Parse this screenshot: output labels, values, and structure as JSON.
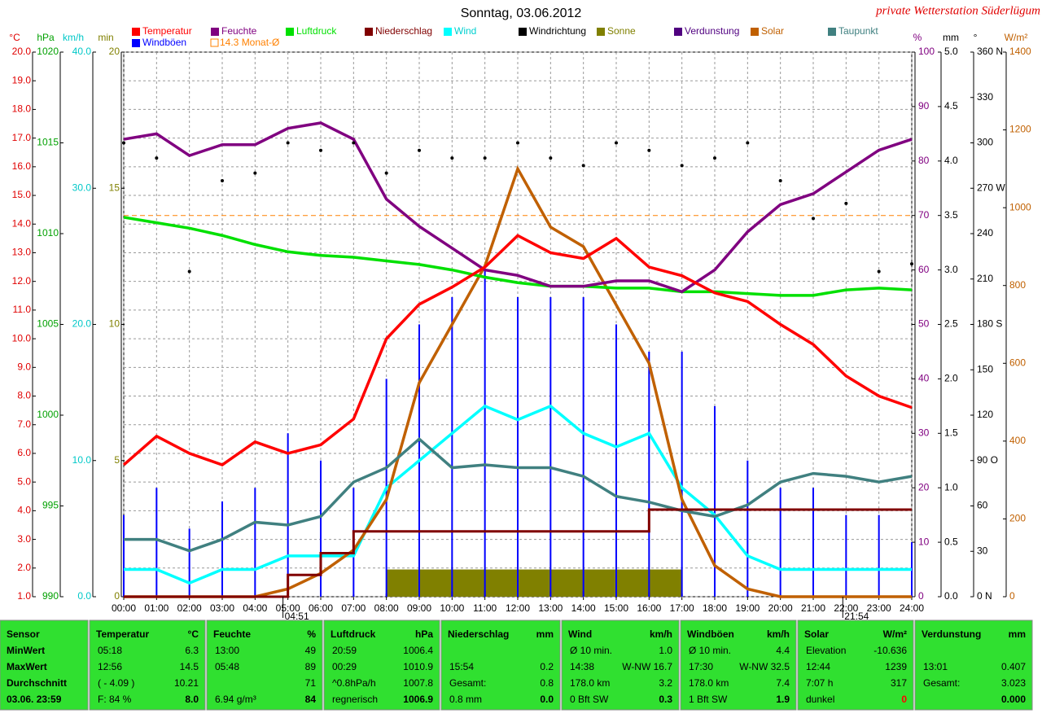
{
  "chart_data": {
    "type": "multi-axis-weather",
    "title": "Sonntag, 03.06.2012",
    "subtitle": "private Wetterstation Süderlügum",
    "x": [
      0,
      1,
      2,
      3,
      4,
      5,
      6,
      7,
      8,
      9,
      10,
      11,
      12,
      13,
      14,
      15,
      16,
      17,
      18,
      19,
      20,
      21,
      22,
      23,
      24
    ],
    "xlim": [
      0,
      24
    ],
    "xticks": [
      {
        "value": 0,
        "label": "00:00"
      },
      {
        "value": 1,
        "label": "01:00"
      },
      {
        "value": 2,
        "label": "02:00"
      },
      {
        "value": 3,
        "label": "03:00"
      },
      {
        "value": 4,
        "label": "04:00"
      },
      {
        "value": 5,
        "label": "05:00"
      },
      {
        "value": 6,
        "label": "06:00"
      },
      {
        "value": 7,
        "label": "07:00"
      },
      {
        "value": 8,
        "label": "08:00"
      },
      {
        "value": 9,
        "label": "09:00"
      },
      {
        "value": 10,
        "label": "10:00"
      },
      {
        "value": 11,
        "label": "11:00"
      },
      {
        "value": 12,
        "label": "12:00"
      },
      {
        "value": 13,
        "label": "13:00"
      },
      {
        "value": 14,
        "label": "14:00"
      },
      {
        "value": 15,
        "label": "15:00"
      },
      {
        "value": 16,
        "label": "16:00"
      },
      {
        "value": 17,
        "label": "17:00"
      },
      {
        "value": 18,
        "label": "18:00"
      },
      {
        "value": 19,
        "label": "19:00"
      },
      {
        "value": 20,
        "label": "20:00"
      },
      {
        "value": 21,
        "label": "21:00"
      },
      {
        "value": 22,
        "label": "22:00"
      },
      {
        "value": 23,
        "label": "23:00"
      },
      {
        "value": 24,
        "label": "24:00"
      }
    ],
    "grid": true,
    "annotations": [
      "04:51",
      "21:54"
    ],
    "axes": [
      {
        "label": "°C",
        "color": "#e00000",
        "side": "left",
        "lim": [
          1,
          20
        ],
        "ticks": [
          {
            "value": 1,
            "label": "1.0"
          },
          {
            "value": 2,
            "label": "2.0"
          },
          {
            "value": 3,
            "label": "3.0"
          },
          {
            "value": 4,
            "label": "4.0"
          },
          {
            "value": 5,
            "label": "5.0"
          },
          {
            "value": 6,
            "label": "6.0"
          },
          {
            "value": 7,
            "label": "7.0"
          },
          {
            "value": 8,
            "label": "8.0"
          },
          {
            "value": 9,
            "label": "9.0"
          },
          {
            "value": 10,
            "label": "10.0"
          },
          {
            "value": 11,
            "label": "11.0"
          },
          {
            "value": 12,
            "label": "12.0"
          },
          {
            "value": 13,
            "label": "13.0"
          },
          {
            "value": 14,
            "label": "14.0"
          },
          {
            "value": 15,
            "label": "15.0"
          },
          {
            "value": 16,
            "label": "16.0"
          },
          {
            "value": 17,
            "label": "17.0"
          },
          {
            "value": 18,
            "label": "18.0"
          },
          {
            "value": 19,
            "label": "19.0"
          },
          {
            "value": 20,
            "label": "20.0"
          }
        ]
      },
      {
        "label": "hPa",
        "color": "#00a000",
        "side": "left",
        "lim": [
          990,
          1020
        ],
        "ticks": [
          990,
          995,
          1000,
          1005,
          1010,
          1015,
          1020
        ]
      },
      {
        "label": "km/h",
        "color": "#00c8c8",
        "side": "left",
        "lim": [
          0,
          40
        ],
        "ticks": [
          {
            "value": 0,
            "label": "0.0"
          },
          {
            "value": 10,
            "label": "10.0"
          },
          {
            "value": 20,
            "label": "20.0"
          },
          {
            "value": 30,
            "label": "30.0"
          },
          {
            "value": 40,
            "label": "40.0"
          }
        ]
      },
      {
        "label": "min",
        "color": "#808000",
        "side": "left",
        "lim": [
          0,
          20
        ],
        "ticks": [
          0,
          5,
          10,
          15,
          20
        ]
      },
      {
        "label": "%",
        "color": "#800080",
        "side": "right",
        "lim": [
          0,
          100
        ],
        "ticks": [
          0,
          10,
          20,
          30,
          40,
          50,
          60,
          70,
          80,
          90,
          100
        ]
      },
      {
        "label": "mm",
        "color": "#000000",
        "side": "right",
        "lim": [
          0,
          5
        ],
        "ticks": [
          {
            "value": 0,
            "label": "0.0"
          },
          {
            "value": 0.5,
            "label": "0.5"
          },
          {
            "value": 1,
            "label": "1.0"
          },
          {
            "value": 1.5,
            "label": "1.5"
          },
          {
            "value": 2,
            "label": "2.0"
          },
          {
            "value": 2.5,
            "label": "2.5"
          },
          {
            "value": 3,
            "label": "3.0"
          },
          {
            "value": 3.5,
            "label": "3.5"
          },
          {
            "value": 4,
            "label": "4.0"
          },
          {
            "value": 4.5,
            "label": "4.5"
          },
          {
            "value": 5,
            "label": "5.0"
          }
        ]
      },
      {
        "label": "°",
        "color": "#000000",
        "side": "right",
        "lim": [
          0,
          360
        ],
        "ticks": [
          {
            "value": 0,
            "label": "0   N"
          },
          30,
          60,
          {
            "value": 90,
            "label": "90  O"
          },
          120,
          150,
          {
            "value": 180,
            "label": "180 S"
          },
          210,
          240,
          {
            "value": 270,
            "label": "270 W"
          },
          300,
          330,
          {
            "value": 360,
            "label": "360 N"
          }
        ]
      },
      {
        "label": "W/m²",
        "color": "#c06000",
        "side": "right",
        "lim": [
          0,
          1400
        ],
        "ticks": [
          0,
          200,
          400,
          600,
          800,
          1000,
          1200,
          1400
        ]
      }
    ],
    "series": [
      {
        "name": "Temperatur",
        "color": "#ff0000",
        "axis": 0,
        "style": "line",
        "values": [
          5.6,
          6.6,
          6.0,
          5.6,
          6.4,
          6.0,
          6.3,
          7.2,
          10.0,
          11.2,
          11.8,
          12.5,
          13.6,
          13.0,
          12.8,
          13.5,
          12.5,
          12.2,
          11.6,
          11.3,
          10.5,
          9.8,
          8.7,
          8.0,
          7.6
        ]
      },
      {
        "name": "Feuchte",
        "color": "#800080",
        "axis": 4,
        "style": "line",
        "values": [
          84,
          85,
          81,
          83,
          83,
          86,
          87,
          84,
          73,
          68,
          64,
          60,
          59,
          57,
          57,
          58,
          58,
          56,
          60,
          67,
          72,
          74,
          78,
          82,
          84
        ]
      },
      {
        "name": "Luftdruck",
        "color": "#00e000",
        "axis": 1,
        "style": "line",
        "values": [
          1010.9,
          1010.6,
          1010.3,
          1009.9,
          1009.4,
          1009.0,
          1008.8,
          1008.7,
          1008.5,
          1008.3,
          1008.0,
          1007.6,
          1007.3,
          1007.1,
          1007.1,
          1007.0,
          1007.0,
          1006.8,
          1006.8,
          1006.7,
          1006.6,
          1006.6,
          1006.9,
          1007.0,
          1006.9
        ]
      },
      {
        "name": "Niederschlag",
        "color": "#800000",
        "axis": 5,
        "style": "step",
        "values": [
          0,
          0,
          0,
          0,
          0,
          0.2,
          0.4,
          0.6,
          0.6,
          0.6,
          0.6,
          0.6,
          0.6,
          0.6,
          0.6,
          0.6,
          0.8,
          0.8,
          0.8,
          0.8,
          0.8,
          0.8,
          0.8,
          0.8,
          0.8
        ]
      },
      {
        "name": "Wind",
        "color": "#00ffff",
        "axis": 2,
        "style": "line",
        "values": [
          2,
          2,
          1,
          2,
          2,
          3,
          3,
          3,
          8,
          10,
          12,
          14,
          13,
          14,
          12,
          11,
          12,
          8,
          6,
          3,
          2,
          2,
          2,
          2,
          2
        ]
      },
      {
        "name": "Windrichtung",
        "color": "#000000",
        "axis": 6,
        "style": "dots",
        "values": [
          300,
          290,
          215,
          275,
          280,
          300,
          295,
          300,
          280,
          295,
          290,
          290,
          300,
          290,
          285,
          300,
          295,
          285,
          290,
          300,
          275,
          250,
          260,
          215,
          220
        ]
      },
      {
        "name": "Sonne",
        "color": "#808000",
        "axis": 3,
        "style": "bars",
        "values": [
          0,
          0,
          0,
          0,
          0,
          0,
          0,
          0,
          1,
          1,
          1,
          1,
          1,
          1,
          1,
          1,
          1,
          0,
          0,
          0,
          0,
          0,
          0,
          0,
          0
        ]
      },
      {
        "name": "Verdunstung",
        "color": "#500080",
        "axis": 5,
        "style": "spikes",
        "values": [
          0,
          0,
          0,
          0,
          0,
          0,
          0,
          0.02,
          0.03,
          0.05,
          0.05,
          0.06,
          0.06,
          0.05,
          0.05,
          0.04,
          0.04,
          0.03,
          0.02,
          0.01,
          0,
          0,
          0,
          0,
          0
        ]
      },
      {
        "name": "Solar",
        "color": "#c06000",
        "axis": 7,
        "style": "line",
        "values": [
          0,
          0,
          0,
          0,
          0,
          20,
          60,
          120,
          250,
          550,
          700,
          850,
          1100,
          950,
          900,
          750,
          600,
          250,
          80,
          20,
          0,
          0,
          0,
          0,
          0
        ]
      },
      {
        "name": "Taupunkt",
        "color": "#408080",
        "axis": 0,
        "style": "line",
        "values": [
          3.0,
          3.0,
          2.6,
          3.0,
          3.6,
          3.5,
          3.8,
          5.0,
          5.5,
          6.5,
          5.5,
          5.6,
          5.5,
          5.5,
          5.2,
          4.5,
          4.3,
          4.0,
          3.8,
          4.2,
          5.0,
          5.3,
          5.2,
          5.0,
          5.2
        ]
      },
      {
        "name": "Windböen",
        "color": "#0000ff",
        "axis": 2,
        "style": "spikes",
        "values": [
          6,
          8,
          5,
          7,
          8,
          12,
          10,
          8,
          16,
          20,
          22,
          24,
          22,
          22,
          22,
          20,
          18,
          18,
          14,
          10,
          8,
          8,
          6,
          6,
          4
        ]
      }
    ],
    "reference": {
      "label": "14.3 Monat-Ø",
      "value": 14.3,
      "axis": 0,
      "color": "#ff8000"
    }
  },
  "table": {
    "columns": [
      {
        "header": "Sensor",
        "rows": [
          "MinWert",
          "MaxWert",
          "Durchschnitt",
          "03.06. 23:59"
        ]
      },
      {
        "header": "Temperatur",
        "unit": "°C",
        "rows": [
          {
            "left": "05:18",
            "right": "6.3"
          },
          {
            "left": "12:56",
            "right": "14.5"
          },
          {
            "left": "( - 4.09 )",
            "right": "10.21"
          },
          {
            "left": "F: 84 %",
            "right": "8.0"
          }
        ]
      },
      {
        "header": "Feuchte",
        "unit": "%",
        "rows": [
          {
            "left": "13:00",
            "right": "49"
          },
          {
            "left": "05:48",
            "right": "89"
          },
          {
            "right": "71"
          },
          {
            "left": "6.94 g/m³",
            "right": "84"
          }
        ]
      },
      {
        "header": "Luftdruck",
        "unit": "hPa",
        "rows": [
          {
            "left": "20:59",
            "right": "1006.4"
          },
          {
            "left": "00:29",
            "right": "1010.9"
          },
          {
            "left": "^0.8hPa/h",
            "right": "1007.8"
          },
          {
            "left": "regnerisch",
            "right": "1006.9"
          }
        ]
      },
      {
        "header": "Niederschlag",
        "unit": "mm",
        "rows": [
          {},
          {
            "left": "15:54",
            "right": "0.2"
          },
          {
            "left": "Gesamt:",
            "right": "0.8"
          },
          {
            "left": "0.8 mm",
            "right": "0.0"
          }
        ]
      },
      {
        "header": "Wind",
        "unit": "km/h",
        "rows": [
          {
            "left": "Ø 10 min.",
            "right": "1.0"
          },
          {
            "left": "14:38",
            "right": "W-NW 16.7"
          },
          {
            "left": "178.0 km",
            "right": "3.2"
          },
          {
            "left": "0 Bft SW",
            "right": "0.3"
          }
        ]
      },
      {
        "header": "Windböen",
        "unit": "km/h",
        "rows": [
          {
            "left": "Ø 10 min.",
            "right": "4.4"
          },
          {
            "left": "17:30",
            "right": "W-NW 32.5"
          },
          {
            "left": "178.0 km",
            "right": "7.4"
          },
          {
            "left": "1 Bft SW",
            "right": "1.9"
          }
        ]
      },
      {
        "header": "Solar",
        "unit": "W/m²",
        "rows": [
          {
            "left": "Elevation",
            "right": "-10.636"
          },
          {
            "left": "12:44",
            "right": "1239"
          },
          {
            "left": "7:07 h",
            "right": "317"
          },
          {
            "left": "dunkel",
            "right": "0",
            "color": "#ff0000"
          }
        ]
      },
      {
        "header": "Verdunstung",
        "unit": "mm",
        "rows": [
          {},
          {
            "left": "13:01",
            "right": "0.407"
          },
          {
            "left": "Gesamt:",
            "right": "3.023"
          },
          {
            "right": "0.000"
          }
        ]
      }
    ]
  }
}
